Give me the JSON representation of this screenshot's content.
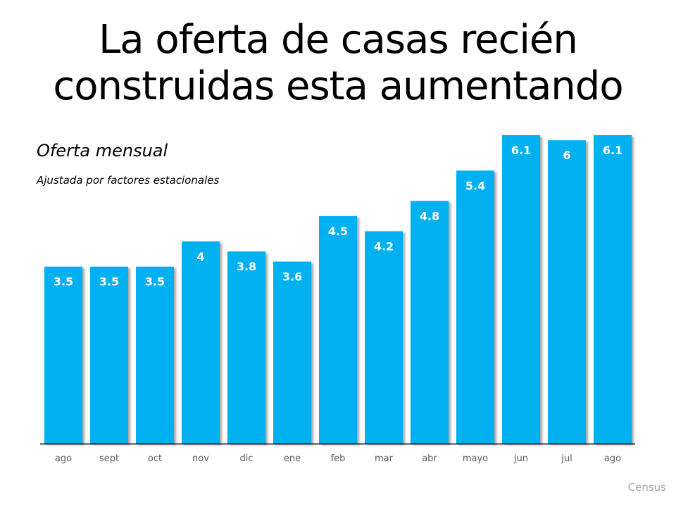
{
  "chart_data": {
    "type": "bar",
    "title": "La oferta de casas recién construidas esta aumentando",
    "subtitle": "Oferta mensual",
    "note": "Ajustada por factores estacionales",
    "source": "Census",
    "categories": [
      "ago",
      "sept",
      "oct",
      "nov",
      "dic",
      "ene",
      "feb",
      "mar",
      "abr",
      "mayo",
      "jun",
      "jul",
      "ago"
    ],
    "values": [
      3.5,
      3.5,
      3.5,
      4,
      3.8,
      3.6,
      4.5,
      4.2,
      4.8,
      5.4,
      6.1,
      6,
      6.1
    ],
    "data_labels": [
      "3.5",
      "3.5",
      "3.5",
      "4",
      "3.8",
      "3.6",
      "4.5",
      "4.2",
      "4.8",
      "5.4",
      "6.1",
      "6",
      "6.1"
    ],
    "ylim": [
      0,
      6.1
    ],
    "grid": false,
    "y_axis_visible": false,
    "colors": {
      "bar": "#00B0F0",
      "label": "#ffffff",
      "tick": "#595959",
      "source": "#a6a6a6"
    }
  }
}
